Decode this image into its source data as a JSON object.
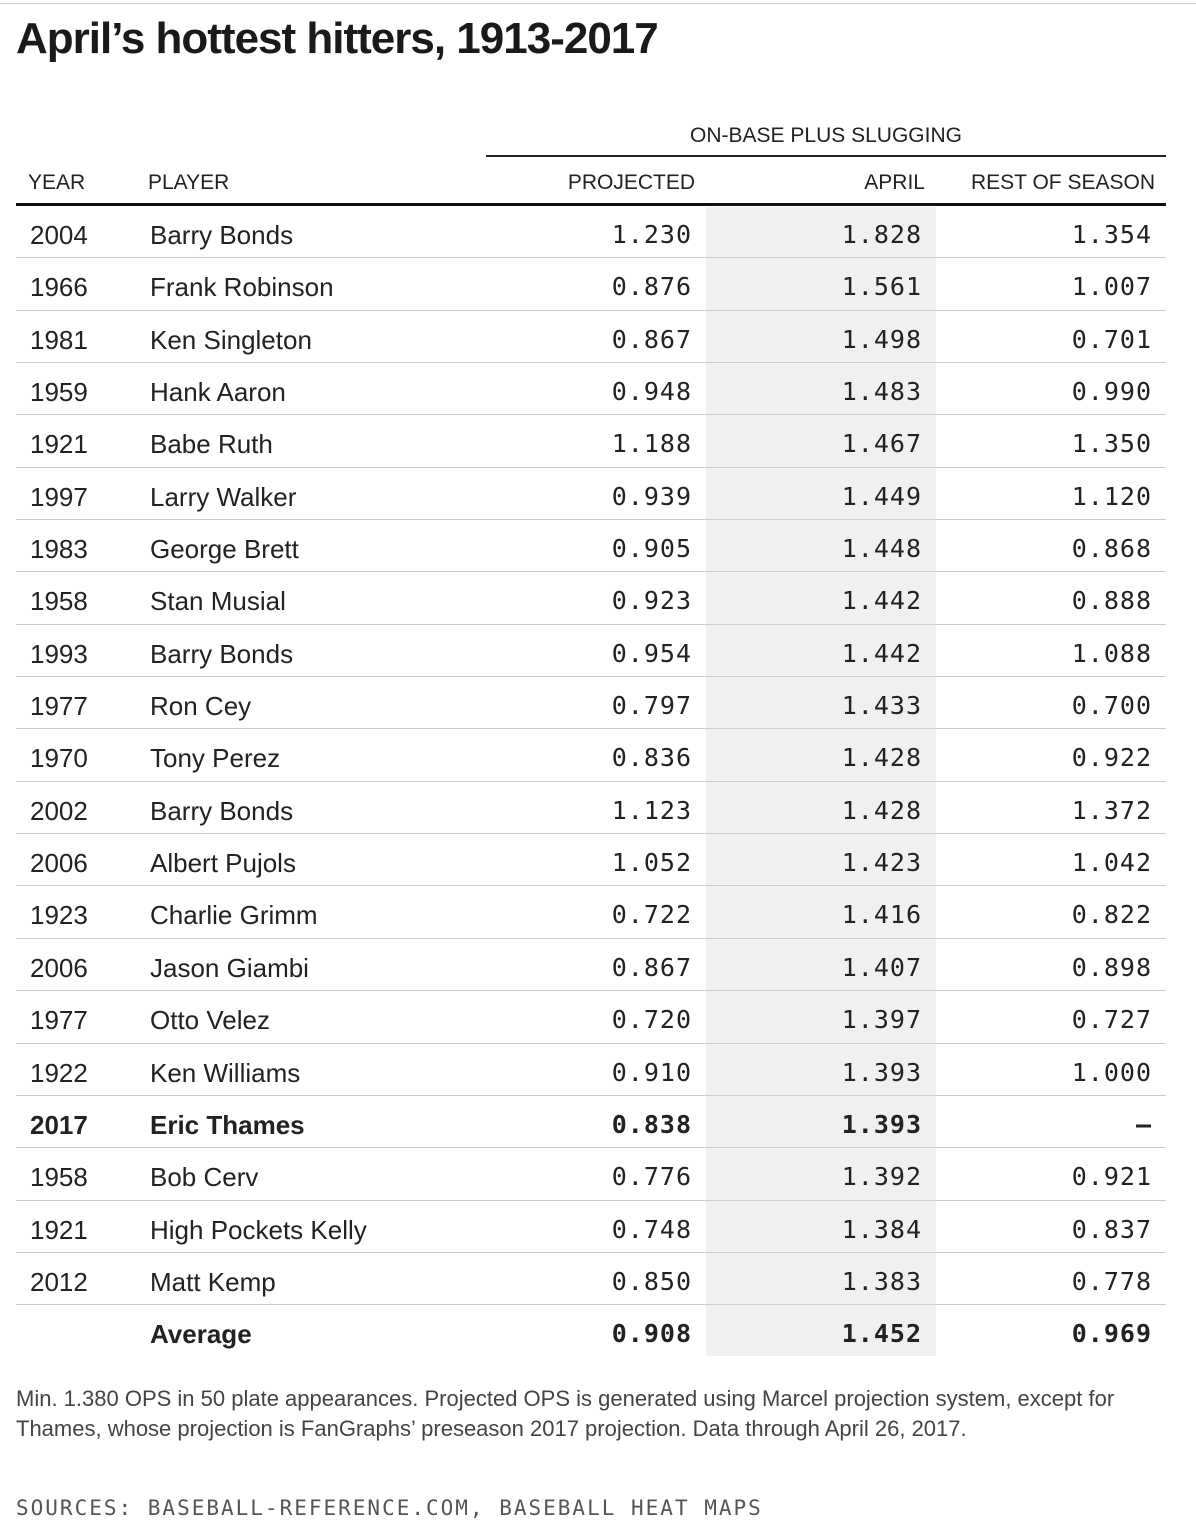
{
  "title": "April’s hottest hitters, 1913-2017",
  "group_header": "ON-BASE PLUS SLUGGING",
  "columns": {
    "year": "YEAR",
    "player": "PLAYER",
    "projected": "PROJECTED",
    "april": "APRIL",
    "rest": "REST OF SEASON"
  },
  "chart_data": {
    "type": "table",
    "title": "April’s hottest hitters, 1913-2017",
    "group_header": "ON-BASE PLUS SLUGGING",
    "columns": [
      "YEAR",
      "PLAYER",
      "PROJECTED",
      "APRIL",
      "REST OF SEASON"
    ],
    "highlighted_column": "APRIL",
    "rows": [
      {
        "year": "2004",
        "player": "Barry Bonds",
        "projected": "1.230",
        "april": "1.828",
        "rest": "1.354"
      },
      {
        "year": "1966",
        "player": "Frank Robinson",
        "projected": "0.876",
        "april": "1.561",
        "rest": "1.007"
      },
      {
        "year": "1981",
        "player": "Ken Singleton",
        "projected": "0.867",
        "april": "1.498",
        "rest": "0.701"
      },
      {
        "year": "1959",
        "player": "Hank Aaron",
        "projected": "0.948",
        "april": "1.483",
        "rest": "0.990"
      },
      {
        "year": "1921",
        "player": "Babe Ruth",
        "projected": "1.188",
        "april": "1.467",
        "rest": "1.350"
      },
      {
        "year": "1997",
        "player": "Larry Walker",
        "projected": "0.939",
        "april": "1.449",
        "rest": "1.120"
      },
      {
        "year": "1983",
        "player": "George Brett",
        "projected": "0.905",
        "april": "1.448",
        "rest": "0.868"
      },
      {
        "year": "1958",
        "player": "Stan Musial",
        "projected": "0.923",
        "april": "1.442",
        "rest": "0.888"
      },
      {
        "year": "1993",
        "player": "Barry Bonds",
        "projected": "0.954",
        "april": "1.442",
        "rest": "1.088"
      },
      {
        "year": "1977",
        "player": "Ron Cey",
        "projected": "0.797",
        "april": "1.433",
        "rest": "0.700"
      },
      {
        "year": "1970",
        "player": "Tony Perez",
        "projected": "0.836",
        "april": "1.428",
        "rest": "0.922"
      },
      {
        "year": "2002",
        "player": "Barry Bonds",
        "projected": "1.123",
        "april": "1.428",
        "rest": "1.372"
      },
      {
        "year": "2006",
        "player": "Albert Pujols",
        "projected": "1.052",
        "april": "1.423",
        "rest": "1.042"
      },
      {
        "year": "1923",
        "player": "Charlie Grimm",
        "projected": "0.722",
        "april": "1.416",
        "rest": "0.822"
      },
      {
        "year": "2006",
        "player": "Jason Giambi",
        "projected": "0.867",
        "april": "1.407",
        "rest": "0.898"
      },
      {
        "year": "1977",
        "player": "Otto Velez",
        "projected": "0.720",
        "april": "1.397",
        "rest": "0.727"
      },
      {
        "year": "1922",
        "player": "Ken Williams",
        "projected": "0.910",
        "april": "1.393",
        "rest": "1.000"
      },
      {
        "year": "2017",
        "player": "Eric Thames",
        "projected": "0.838",
        "april": "1.393",
        "rest": "–",
        "bold": true
      },
      {
        "year": "1958",
        "player": "Bob Cerv",
        "projected": "0.776",
        "april": "1.392",
        "rest": "0.921"
      },
      {
        "year": "1921",
        "player": "High Pockets Kelly",
        "projected": "0.748",
        "april": "1.384",
        "rest": "0.837"
      },
      {
        "year": "2012",
        "player": "Matt Kemp",
        "projected": "0.850",
        "april": "1.383",
        "rest": "0.778"
      },
      {
        "year": "",
        "player": "Average",
        "projected": "0.908",
        "april": "1.452",
        "rest": "0.969",
        "bold": true
      }
    ]
  },
  "note": "Min. 1.380 OPS in 50 plate appearances. Projected OPS is generated using Marcel projection system, except for Thames, whose projection is FanGraphs’ preseason 2017 projection. Data through April 26, 2017.",
  "sources": "SOURCES: BASEBALL-REFERENCE.COM, BASEBALL HEAT MAPS"
}
